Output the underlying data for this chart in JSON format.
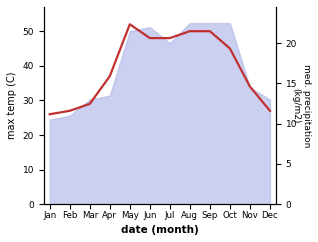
{
  "months": [
    "Jan",
    "Feb",
    "Mar",
    "Apr",
    "May",
    "Jun",
    "Jul",
    "Aug",
    "Sep",
    "Oct",
    "Nov",
    "Dec"
  ],
  "month_indices": [
    0,
    1,
    2,
    3,
    4,
    5,
    6,
    7,
    8,
    9,
    10,
    11
  ],
  "temp_max": [
    26,
    27,
    29,
    37,
    52,
    48,
    48,
    50,
    50,
    45,
    34,
    27
  ],
  "precip_area": [
    10.5,
    11.0,
    13.0,
    13.5,
    21.5,
    22.0,
    20.0,
    22.5,
    22.5,
    22.5,
    14.5,
    13.0
  ],
  "temp_line_color": "#c03030",
  "precip_area_color": "#b0b8e8",
  "precip_area_alpha": 0.65,
  "xlabel": "date (month)",
  "ylabel_left": "max temp (C)",
  "ylabel_right": "med. precipitation\n(kg/m2)",
  "ylim_left": [
    0,
    57
  ],
  "ylim_right": [
    0,
    24.5
  ],
  "yticks_left": [
    0,
    10,
    20,
    30,
    40,
    50
  ],
  "yticks_right": [
    0,
    5,
    10,
    15,
    20
  ],
  "background_color": "#ffffff",
  "line_width": 1.6
}
